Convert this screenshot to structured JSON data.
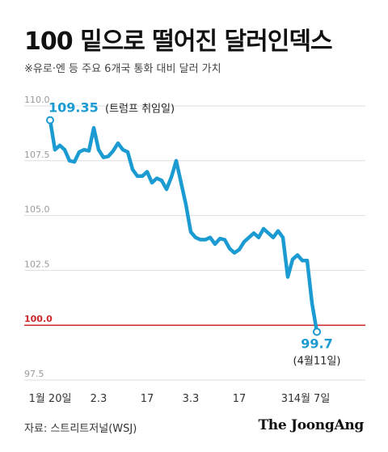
{
  "header": {
    "title": "100 밑으로 떨어진 달러인덱스",
    "subtitle": "※유로·엔 등 주요 6개국 통화 대비 달러 가치"
  },
  "footer": {
    "source": "자료: 스트리트저널(WSJ)",
    "brand": "The JoongAng"
  },
  "colors": {
    "line": "#1b9bd1",
    "reference": "#cc2a2a",
    "grid": "#dddddd",
    "tick_text": "#999999"
  },
  "chart_data": {
    "type": "line",
    "title": "100 밑으로 떨어진 달러인덱스",
    "subtitle": "※유로·엔 등 주요 6개국 통화 대비 달러 가치",
    "ylim": [
      97.5,
      110.0
    ],
    "y_ticks": [
      {
        "value": 110.0,
        "label": "110.0"
      },
      {
        "value": 107.5,
        "label": "107.5"
      },
      {
        "value": 105.0,
        "label": "105.0"
      },
      {
        "value": 102.5,
        "label": "102.5"
      },
      {
        "value": 100.0,
        "label": "100.0",
        "highlight": true
      },
      {
        "value": 97.5,
        "label": "97.5"
      }
    ],
    "x_ticks": [
      {
        "x": 0,
        "label": "1월 20일"
      },
      {
        "x": 10,
        "label": "2.3"
      },
      {
        "x": 20,
        "label": "17"
      },
      {
        "x": 29,
        "label": "3.3"
      },
      {
        "x": 39,
        "label": "17"
      },
      {
        "x": 49,
        "label": "31"
      },
      {
        "x": 54,
        "label": "4월 7일"
      }
    ],
    "reference_line": {
      "value": 100.0
    },
    "series": [
      {
        "values": [
          109.35,
          108.0,
          108.2,
          108.0,
          107.5,
          107.45,
          107.9,
          108.0,
          107.95,
          109.0,
          108.0,
          107.65,
          107.7,
          107.95,
          108.3,
          108.0,
          107.9,
          107.1,
          106.8,
          106.8,
          107.0,
          106.5,
          106.7,
          106.6,
          106.2,
          106.75,
          107.5,
          106.5,
          105.5,
          104.25,
          104.0,
          103.9,
          103.9,
          104.0,
          103.7,
          103.95,
          103.9,
          103.5,
          103.3,
          103.45,
          103.8,
          104.0,
          104.2,
          104.0,
          104.4,
          104.2,
          104.0,
          104.3,
          104.0,
          102.2,
          103.0,
          103.2,
          102.95,
          102.95,
          101.0,
          99.7
        ],
        "point_annotations": [
          {
            "index": 0,
            "value_label": "109.35",
            "note": "(트럼프 취임일)"
          },
          {
            "index": 55,
            "value_label": "99.7",
            "note": "(4월11일)"
          }
        ]
      }
    ]
  }
}
